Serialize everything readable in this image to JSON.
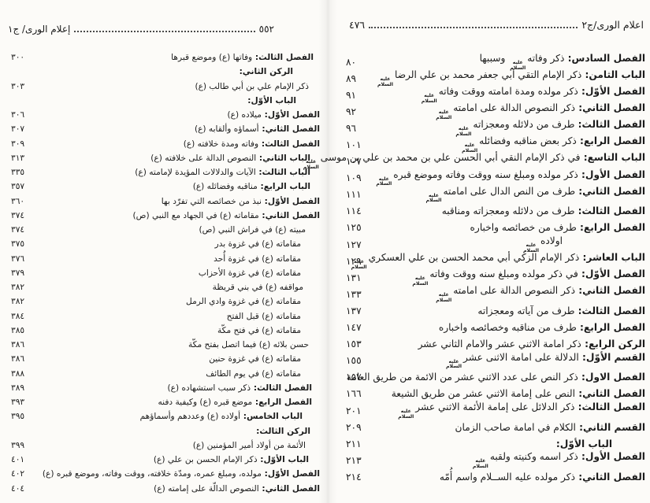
{
  "colors": {
    "paper": "#fcfbf8",
    "ink": "#1b1b1b",
    "leader_dots": "#4a4a4a"
  },
  "symbols": {
    "alayhissalam_line1": "عليه",
    "alayhissalam_line2": "السلام"
  },
  "left_page": {
    "header": {
      "title": "إعلام الورى/ ج١",
      "page_number": "٥٥٢"
    },
    "rows": [
      {
        "b": "الفصل الثالث:",
        "t": "وفاتها (ع) وموضع قبرها",
        "sym": false,
        "t2": "",
        "p": "٣٠٠",
        "in": 8
      },
      {
        "b": "الركن الثاني:",
        "t": "",
        "sym": false,
        "t2": "",
        "p": "",
        "in": 34
      },
      {
        "b": "",
        "t": "ذكر الإمام علي بن أبي طالب (ع)",
        "sym": false,
        "t2": "",
        "p": "٣٠٣",
        "in": 14
      },
      {
        "b": "الباب الأوّل:",
        "t": "",
        "sym": false,
        "t2": "",
        "p": "",
        "in": 30
      },
      {
        "b": "الفصل الأوّل:",
        "t": "ميلاده (ع)",
        "sym": false,
        "t2": "",
        "p": "٣٠٦",
        "in": 0
      },
      {
        "b": "الفصل الثاني:",
        "t": "أسماؤه وألقابه (ع)",
        "sym": false,
        "t2": "",
        "p": "٣٠٧",
        "in": 0
      },
      {
        "b": "الفصل الثالث:",
        "t": "وفاته ومدة خلافته (ع)",
        "sym": false,
        "t2": "",
        "p": "٣٠٩",
        "in": 0
      },
      {
        "b": "الباب الثاني:",
        "t": "النصوص الدالة على خلافته (ع)",
        "sym": false,
        "t2": "",
        "p": "٣١٣",
        "in": 12
      },
      {
        "b": "الباب الثالث:",
        "t": "الآيات والدلالات المؤيدة لإمامته (ع)",
        "sym": false,
        "t2": "",
        "p": "٣٣٥",
        "in": 12
      },
      {
        "b": "الباب الرابع:",
        "t": "مناقبه وفضائله (ع)",
        "sym": false,
        "t2": "",
        "p": "٣٥٧",
        "in": 12
      },
      {
        "b": "الفصل الأوّل:",
        "t": "نبذ من خصائصه التي تفرّد بها",
        "sym": false,
        "t2": "",
        "p": "٣٦٠",
        "in": 0
      },
      {
        "b": "الفصل الثاني:",
        "t": "مقاماته (ع) في الجهاد مع النبي (ص)",
        "sym": false,
        "t2": "",
        "p": "٣٧٤",
        "in": 0
      },
      {
        "b": "",
        "t": "مبيته (ع) في فراش النبي (ص)",
        "sym": false,
        "t2": "",
        "p": "٣٧٤",
        "in": 18
      },
      {
        "b": "",
        "t": "مقاماته (ع) في غزوة بدر",
        "sym": false,
        "t2": "",
        "p": "٣٧٥",
        "in": 24
      },
      {
        "b": "",
        "t": "مقاماته (ع) في غزوة أُحد",
        "sym": false,
        "t2": "",
        "p": "٣٧٦",
        "in": 24
      },
      {
        "b": "",
        "t": "مقاماته (ع) في غزوة الأحزاب",
        "sym": false,
        "t2": "",
        "p": "٣٧٩",
        "in": 24
      },
      {
        "b": "",
        "t": "مواقفه (ع) في بني قريظة",
        "sym": false,
        "t2": "",
        "p": "٣٨٢",
        "in": 21
      },
      {
        "b": "",
        "t": "مقاماته (ع) في غزوة وادي الرمل",
        "sym": false,
        "t2": "",
        "p": "٣٨٢",
        "in": 24
      },
      {
        "b": "",
        "t": "مقاماته (ع) قبل الفتح",
        "sym": false,
        "t2": "",
        "p": "٣٨٤",
        "in": 24
      },
      {
        "b": "",
        "t": "مقاماته (ع) في فتح مكّة",
        "sym": false,
        "t2": "",
        "p": "٣٨٥",
        "in": 24
      },
      {
        "b": "",
        "t": "حسن بلائه (ع) فيما اتصل بفتح مكّة",
        "sym": false,
        "t2": "",
        "p": "٣٨٦",
        "in": 14
      },
      {
        "b": "",
        "t": "مقاماته (ع) في غزوة حنين",
        "sym": false,
        "t2": "",
        "p": "٣٨٦",
        "in": 24
      },
      {
        "b": "",
        "t": "مقاماته (ع) في يوم الطائف",
        "sym": false,
        "t2": "",
        "p": "٣٨٨",
        "in": 24
      },
      {
        "b": "الفصل الثالث:",
        "t": "ذكر سبب استشهاده (ع)",
        "sym": false,
        "t2": "",
        "p": "٣٨٩",
        "in": 10
      },
      {
        "b": "الفصل الرابع:",
        "t": "موضع قبره (ع) وكيفية دفنه",
        "sym": false,
        "t2": "",
        "p": "٣٩٣",
        "in": 10
      },
      {
        "b": "الباب الخامس:",
        "t": "أولاده (ع) وعددهم وأسماؤهم",
        "sym": false,
        "t2": "",
        "p": "٣٩٥",
        "in": 22
      },
      {
        "b": "الركن الثالث:",
        "t": "",
        "sym": false,
        "t2": "",
        "p": "",
        "in": 12
      },
      {
        "b": "",
        "t": "الأئمة من أولاد أمير المؤمنين (ع)",
        "sym": false,
        "t2": "",
        "p": "٣٩٩",
        "in": 18
      },
      {
        "b": "الباب الأوّل:",
        "t": "ذكر الإمام الحسن بن علي (ع)",
        "sym": false,
        "t2": "",
        "p": "٤٠١",
        "in": 14
      },
      {
        "b": "الفصل الأوّل:",
        "t": "مولده، ومبلغ عمره، ومدّة خلافته، ووقت وفاته، وموضع قبره (ع)",
        "sym": false,
        "t2": "",
        "p": "٤٠٢",
        "in": 0
      },
      {
        "b": "الفصل الثاني:",
        "t": "النصوص الدالّة على إمامته (ع)",
        "sym": false,
        "t2": "",
        "p": "٤٠٤",
        "in": 0
      }
    ]
  },
  "right_page": {
    "header": {
      "title": "اعلام الورى/ج٢",
      "page_number": "٤٧٦"
    },
    "rows": [
      {
        "b": "الفصل السادس:",
        "t": "ذكر وفاته",
        "sym": true,
        "t2": "وسببها",
        "p": "٨٠",
        "in": 0
      },
      {
        "b": "الباب الثامن:",
        "t": "ذكر الإمام التقي أبي جعفر محمد بن علي الرضا",
        "sym": true,
        "t2": "",
        "p": "٨٩",
        "in": 0
      },
      {
        "b": "الفصل الأوّل:",
        "t": "ذكر مولده ومدة امامته ووقت وفاته",
        "sym": true,
        "t2": "",
        "p": "٩١",
        "in": 0
      },
      {
        "b": "الفصل الثاني:",
        "t": "ذكر النصوص الدالة على امامته",
        "sym": true,
        "t2": "",
        "p": "٩٢",
        "in": 0
      },
      {
        "b": "الفصل الثالث:",
        "t": "طرف من دلائله ومعجزاته",
        "sym": true,
        "t2": "",
        "p": "٩٦",
        "in": 0
      },
      {
        "b": "الفصل الرابع:",
        "t": "ذكر بعض مناقبه وفضائله",
        "sym": true,
        "t2": "",
        "p": "١٠١",
        "in": 0
      },
      {
        "b": "الباب التاسع:",
        "t": "في ذكر الإمام النقي أبي الحسن علي بن محمد بن علي بن موسى",
        "sym": true,
        "t2": "",
        "p": "١٠٧",
        "in": 0
      },
      {
        "b": "الفصل الأول:",
        "t": "ذكر مولده ومبلغ سنه ووقت وفاته وموضع قبره",
        "sym": true,
        "t2": "",
        "p": "١٠٩",
        "in": 0
      },
      {
        "b": "الفصل الثاني:",
        "t": "طرف من النص الدال على امامته",
        "sym": true,
        "t2": "",
        "p": "١١١",
        "in": 0
      },
      {
        "b": "الفصل الثالث:",
        "t": "طرف من دلائله ومعجزاته ومناقبه",
        "sym": false,
        "t2": "",
        "p": "١١٤",
        "in": 0
      },
      {
        "b": "الفصل الرابع:",
        "t": "طرف من خصائصه واخباره",
        "sym": false,
        "t2": "",
        "p": "١٢٥",
        "in": 0
      },
      {
        "b": "",
        "t": "اولاده",
        "sym": true,
        "t2": "",
        "p": "١٢٧",
        "in": 105
      },
      {
        "b": "الباب العاشر:",
        "t": "ذكر الإمام الزكي أبي محمد الحسن بن علي العسكري",
        "sym": true,
        "t2": "",
        "p": "١٢٩",
        "in": 0
      },
      {
        "b": "الفصل الأوّل:",
        "t": "في ذكر مولده ومبلغ سنه ووقت وفاته",
        "sym": true,
        "t2": "",
        "p": "١٣١",
        "in": 0
      },
      {
        "b": "الفصل الثاني:",
        "t": "ذكر النصوص الدالة على امامته",
        "sym": true,
        "t2": "",
        "p": "١٣٣",
        "in": 0
      },
      {
        "b": "الفصل الثالث:",
        "t": "طرف من آياته ومعجزاته",
        "sym": false,
        "t2": "",
        "p": "١٣٧",
        "in": 0
      },
      {
        "b": "الفصل الرابع:",
        "t": "طرف من مناقبه وخصائصه واخباره",
        "sym": false,
        "t2": "",
        "p": "١٤٧",
        "in": 0
      },
      {
        "b": "الركن الرابع:",
        "t": "ذكر امامة الاثني عشر والامام الثاني عشر",
        "sym": false,
        "t2": "",
        "p": "١٥٣",
        "in": 0
      },
      {
        "b": "القسم الأوّل:",
        "t": "الدلالة على امامة الاثنى عشر",
        "sym": true,
        "t2": "",
        "p": "١٥٥",
        "in": 0
      },
      {
        "b": "الفصل الاول:",
        "t": "ذكر النص على عدد الاثني عشر من الائمة من طريق العامة",
        "sym": false,
        "t2": "",
        "p": "١٥٧",
        "in": 0
      },
      {
        "b": "الفصل الثاني:",
        "t": "النص على إمامة الاثني عشر من طريق الشيعة",
        "sym": false,
        "t2": "",
        "p": "١٦٦",
        "in": 0
      },
      {
        "b": "الفصل الثالث:",
        "t": "ذكر الدلائل على إمامة الأئمة الاثني عشر",
        "sym": true,
        "t2": "",
        "p": "٢٠١",
        "in": 0
      },
      {
        "b": "القسم الثاني:",
        "t": "الكلام في امامة صاحب الزمان",
        "sym": false,
        "t2": "",
        "p": "٢٠٩",
        "in": 0
      },
      {
        "b": "الباب الأوّل:",
        "t": "",
        "sym": false,
        "t2": "",
        "p": "٢١١",
        "in": 42
      },
      {
        "b": "الفصل الأول:",
        "t": "ذكر اسمه وكنيته ولقبه",
        "sym": true,
        "t2": "",
        "p": "٢١٣",
        "in": 0
      },
      {
        "b": "الفصل الثاني:",
        "t": "ذكر مولده عليه الســلام واسم أُمّه",
        "sym": false,
        "t2": "",
        "p": "٢١٤",
        "in": 0
      }
    ]
  }
}
